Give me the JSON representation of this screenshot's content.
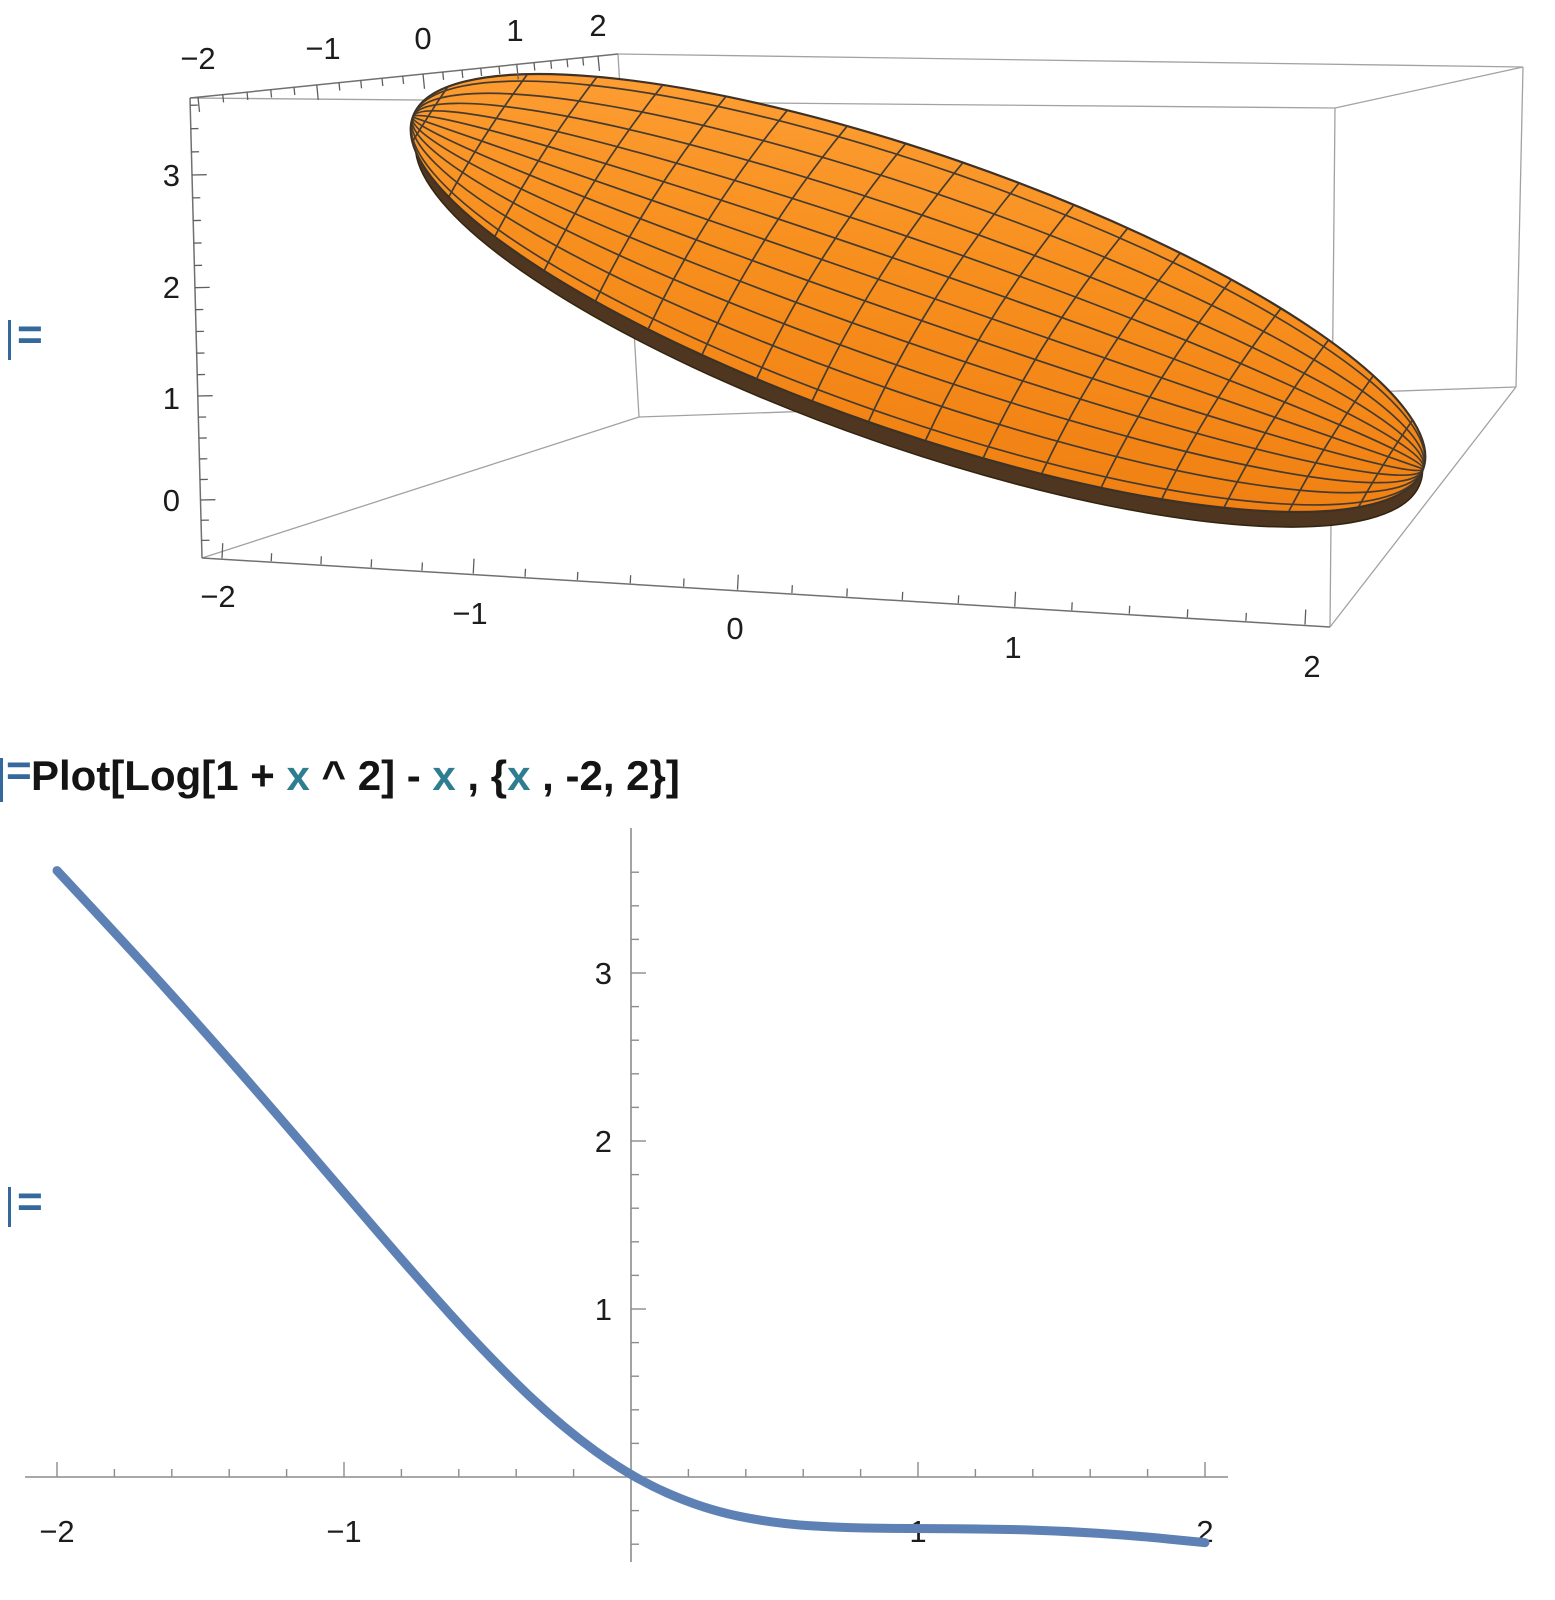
{
  "notebook": {
    "in_marker": "=",
    "out_marker": "=",
    "code": {
      "segments": [
        {
          "text": "Plot[Log[1 + ",
          "style": "plain"
        },
        {
          "text": "x",
          "style": "variable"
        },
        {
          "text": " ^ 2] - ",
          "style": "plain"
        },
        {
          "text": "x",
          "style": "variable"
        },
        {
          "text": " , {",
          "style": "plain"
        },
        {
          "text": "x",
          "style": "variable"
        },
        {
          "text": " , -2, 2}]",
          "style": "plain"
        }
      ]
    }
  },
  "plot3d": {
    "top_axis_labels": [
      "−2",
      "−1",
      "0",
      "1",
      "2"
    ],
    "z_axis_labels": [
      "3",
      "2",
      "1",
      "0"
    ],
    "bottom_axis_labels": [
      "−2",
      "−1",
      "0",
      "1",
      "2"
    ],
    "surface_color": "#F68A19",
    "surface_dark_underside": "#4E3620",
    "mesh_color": "#473B2E",
    "box_color": "#A2A2A2"
  },
  "plot2d": {
    "x_axis_labels": [
      "−2",
      "−1",
      "1",
      "2"
    ],
    "y_axis_labels": [
      "3",
      "2",
      "1"
    ],
    "axis_color": "#8C8C8C"
  },
  "chart_data": [
    {
      "type": "3d-surface",
      "description": "Orange ellipsoidal 3D surface with black mesh lines inside a gray 3D axes box",
      "axis1_ticks": [
        -2,
        -1,
        0,
        1,
        2
      ],
      "axis2_ticks": [
        -2,
        -1,
        0,
        1,
        2
      ],
      "vertical_ticks": [
        0,
        1,
        2,
        3
      ],
      "surface_color": "#F68A19",
      "mesh": true,
      "box": true,
      "legend": false
    },
    {
      "type": "line",
      "expression": "Log[1 + x^2] - x",
      "x_range": [
        -2,
        2
      ],
      "x_ticks": [
        -2,
        -1,
        1,
        2
      ],
      "y_ticks": [
        1,
        2,
        3
      ],
      "line_color": "#5E81B5",
      "grid": false,
      "legend": false,
      "series": [
        {
          "name": "Log[1+x^2]-x",
          "points": [
            [
              -2.0,
              3.6094
            ],
            [
              -1.75,
              3.1518
            ],
            [
              -1.5,
              2.6787
            ],
            [
              -1.25,
              2.1911
            ],
            [
              -1.0,
              1.6931
            ],
            [
              -0.75,
              1.1963
            ],
            [
              -0.5,
              0.7231
            ],
            [
              -0.25,
              0.3106
            ],
            [
              0.0,
              0.0
            ],
            [
              0.25,
              -0.1894
            ],
            [
              0.5,
              -0.2769
            ],
            [
              0.75,
              -0.3037
            ],
            [
              1.0,
              -0.3069
            ],
            [
              1.25,
              -0.3088
            ],
            [
              1.5,
              -0.3213
            ],
            [
              1.75,
              -0.3482
            ],
            [
              2.0,
              -0.3906
            ]
          ]
        }
      ]
    }
  ]
}
